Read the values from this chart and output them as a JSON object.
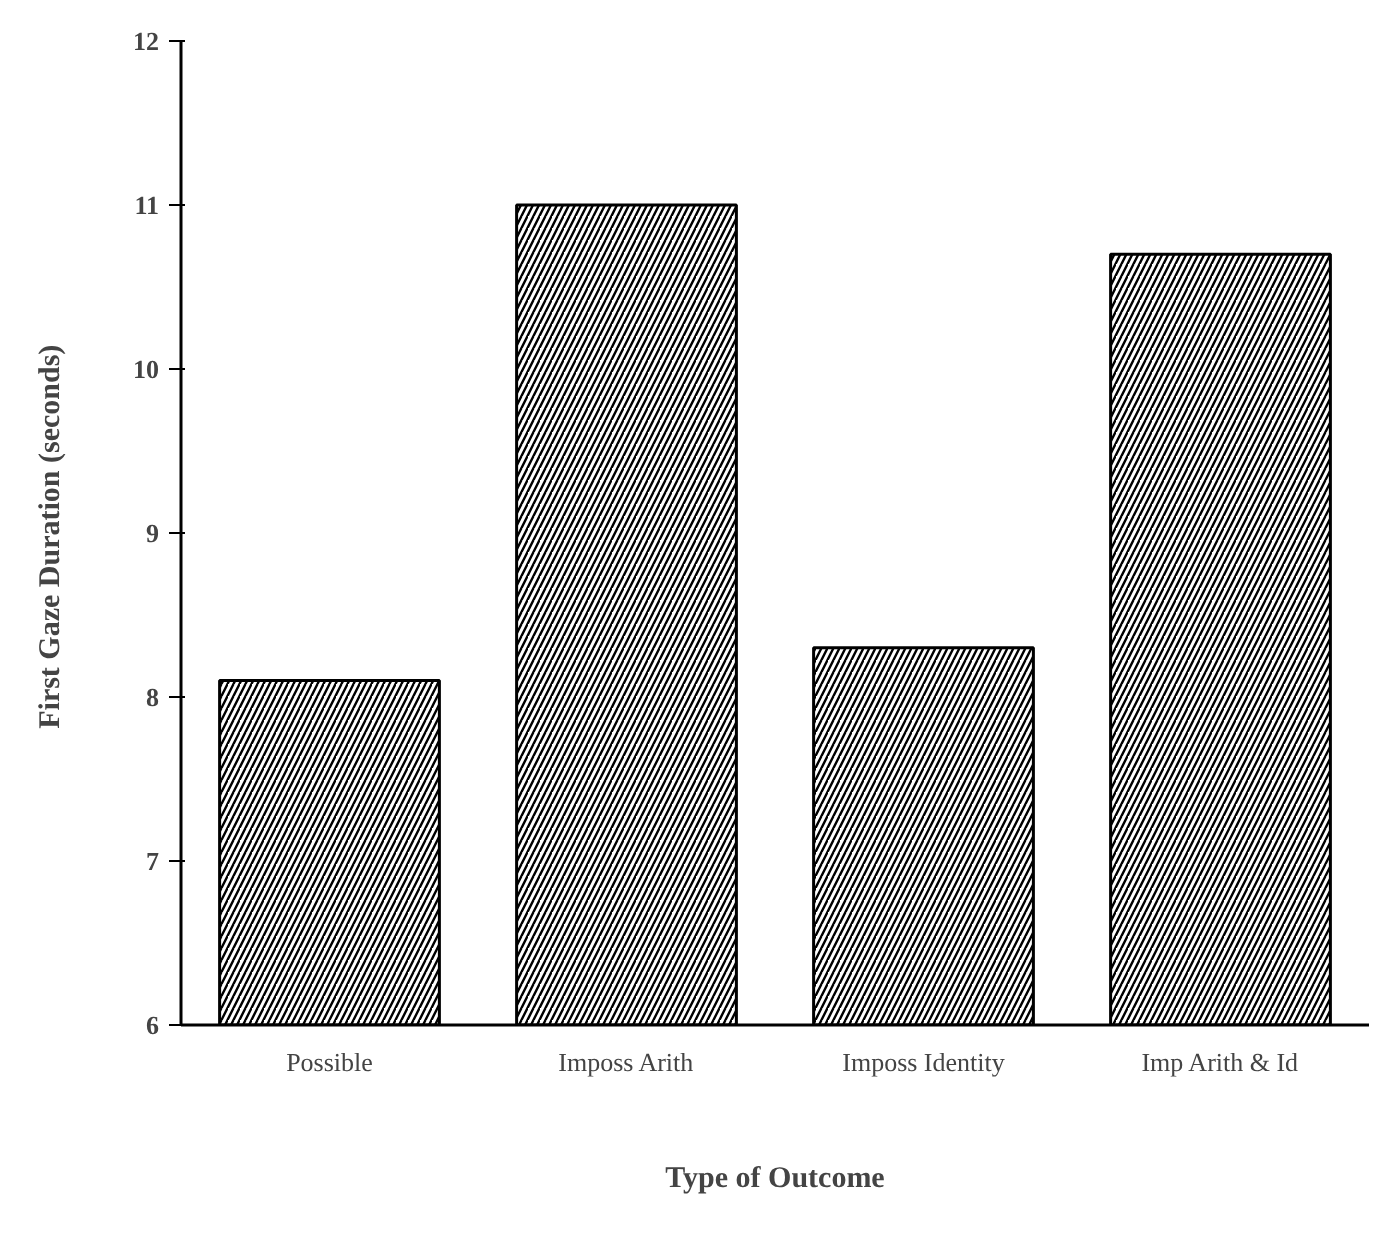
{
  "chart_data": {
    "type": "bar",
    "xlabel": "Type of Outcome",
    "ylabel": "First Gaze Duration  (seconds)",
    "categories": [
      "Possible",
      "Imposs Arith",
      "Imposs Identity",
      "Imp Arith & Id"
    ],
    "values": [
      8.1,
      11.0,
      8.3,
      10.7
    ],
    "color": "#000000",
    "ylim": [
      6,
      12
    ],
    "yticks": [
      6,
      7,
      8,
      9,
      10,
      11,
      12
    ],
    "grid": false
  }
}
